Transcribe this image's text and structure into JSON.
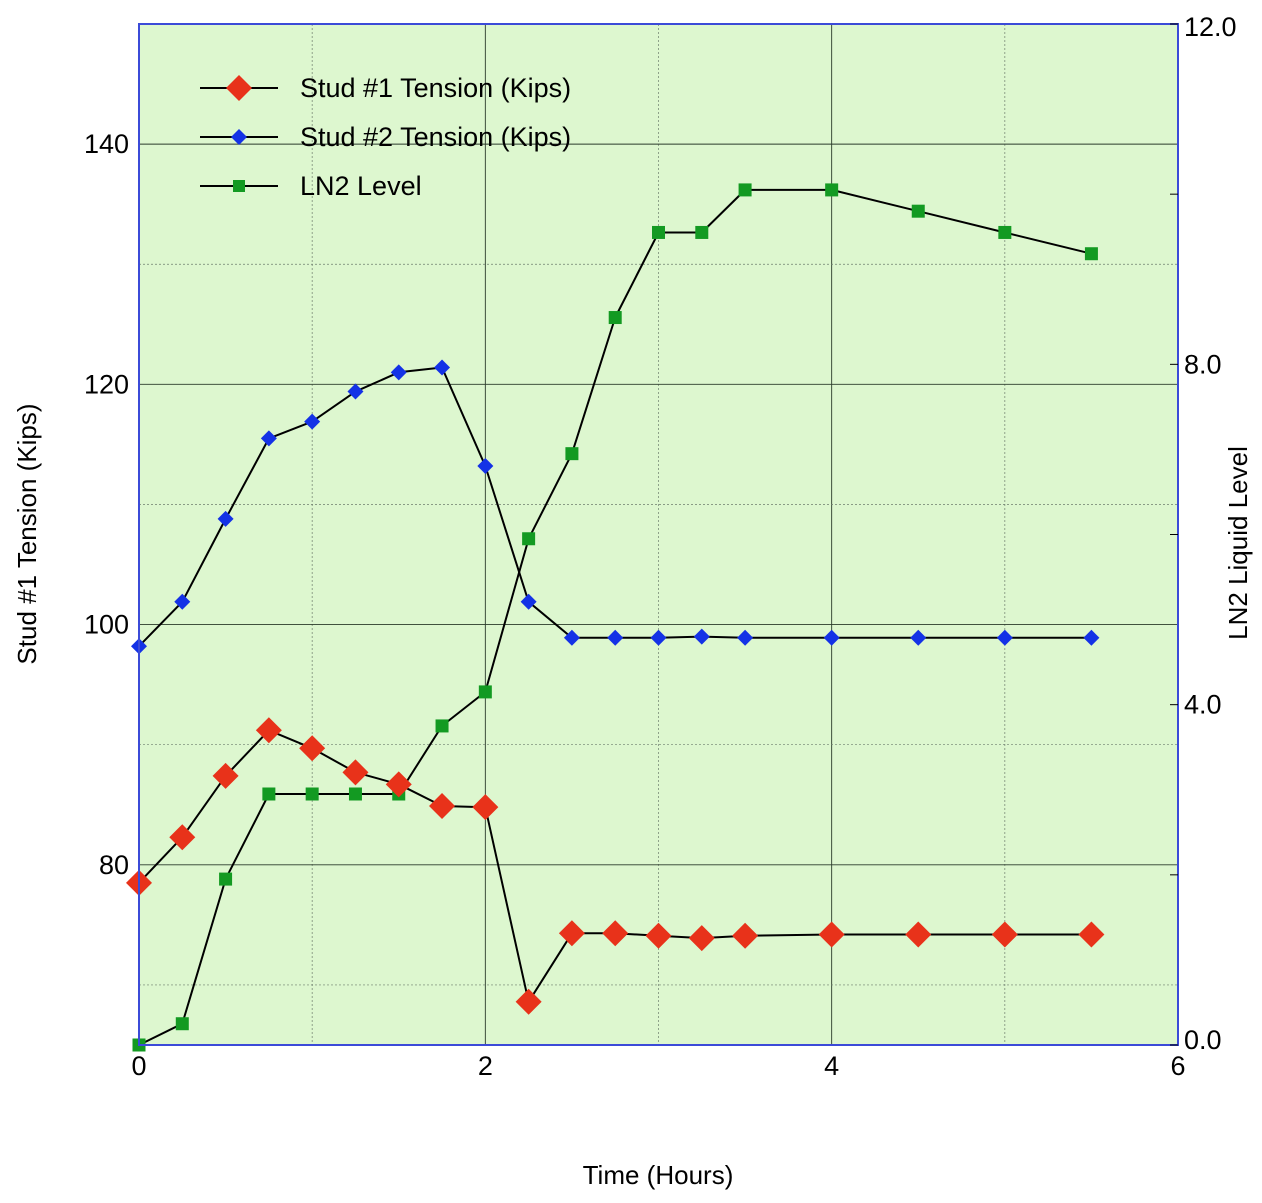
{
  "chart_data": {
    "type": "line",
    "title": "",
    "xlabel": "Time (Hours)",
    "ylabel": "Stud #1 Tension (Kips)",
    "y2label": "LN2 Liquid Level",
    "xlim": [
      0,
      6
    ],
    "ylim": [
      65,
      150
    ],
    "y2lim": [
      0.0,
      12.0
    ],
    "xticks": [
      "0",
      "2",
      "4",
      "6"
    ],
    "yticks": [
      "80",
      "100",
      "120",
      "140"
    ],
    "y2ticks": [
      "0.0",
      "4.0",
      "8.0",
      "12.0"
    ],
    "grid": true,
    "legend_position": "top-left",
    "background_color": "#ddf7cf",
    "frame_color": "#3b4bd8",
    "series": [
      {
        "name": "Stud #1 Tension (Kips)",
        "axis": "left",
        "marker": "diamond",
        "color": "#e8321a",
        "x": [
          0,
          0.25,
          0.5,
          0.75,
          1.0,
          1.25,
          1.5,
          1.75,
          2.0,
          2.25,
          2.5,
          2.75,
          3.0,
          3.25,
          3.5,
          4.0,
          4.5,
          5.0,
          5.5
        ],
        "y": [
          78.5,
          82.3,
          87.4,
          91.2,
          89.7,
          87.7,
          86.7,
          84.9,
          84.8,
          68.6,
          74.3,
          74.3,
          74.1,
          73.9,
          74.1,
          74.2,
          74.2,
          74.2,
          74.2
        ]
      },
      {
        "name": "Stud #2 Tension (Kips)",
        "axis": "left",
        "marker": "diamond",
        "color": "#1432e6",
        "x": [
          0,
          0.25,
          0.5,
          0.75,
          1.0,
          1.25,
          1.5,
          1.75,
          2.0,
          2.25,
          2.5,
          2.75,
          3.0,
          3.25,
          3.5,
          4.0,
          4.5,
          5.0,
          5.5
        ],
        "y": [
          98.2,
          101.9,
          108.8,
          115.5,
          116.9,
          119.4,
          121.0,
          121.4,
          113.2,
          101.9,
          98.9,
          98.9,
          98.9,
          99.0,
          98.9,
          98.9,
          98.9,
          98.9,
          98.9
        ]
      },
      {
        "name": "LN2 Level",
        "axis": "right",
        "marker": "square",
        "color": "#139a22",
        "x": [
          0,
          0.25,
          0.5,
          0.75,
          1.0,
          1.25,
          1.5,
          1.75,
          2.0,
          2.25,
          2.5,
          2.75,
          3.0,
          3.25,
          3.5,
          4.0,
          4.5,
          5.0,
          5.5
        ],
        "y": [
          0.0,
          0.25,
          1.95,
          2.95,
          2.95,
          2.95,
          2.95,
          3.75,
          4.15,
          5.95,
          6.95,
          8.55,
          9.55,
          9.55,
          10.05,
          10.05,
          9.8,
          9.55,
          9.3
        ]
      }
    ]
  }
}
